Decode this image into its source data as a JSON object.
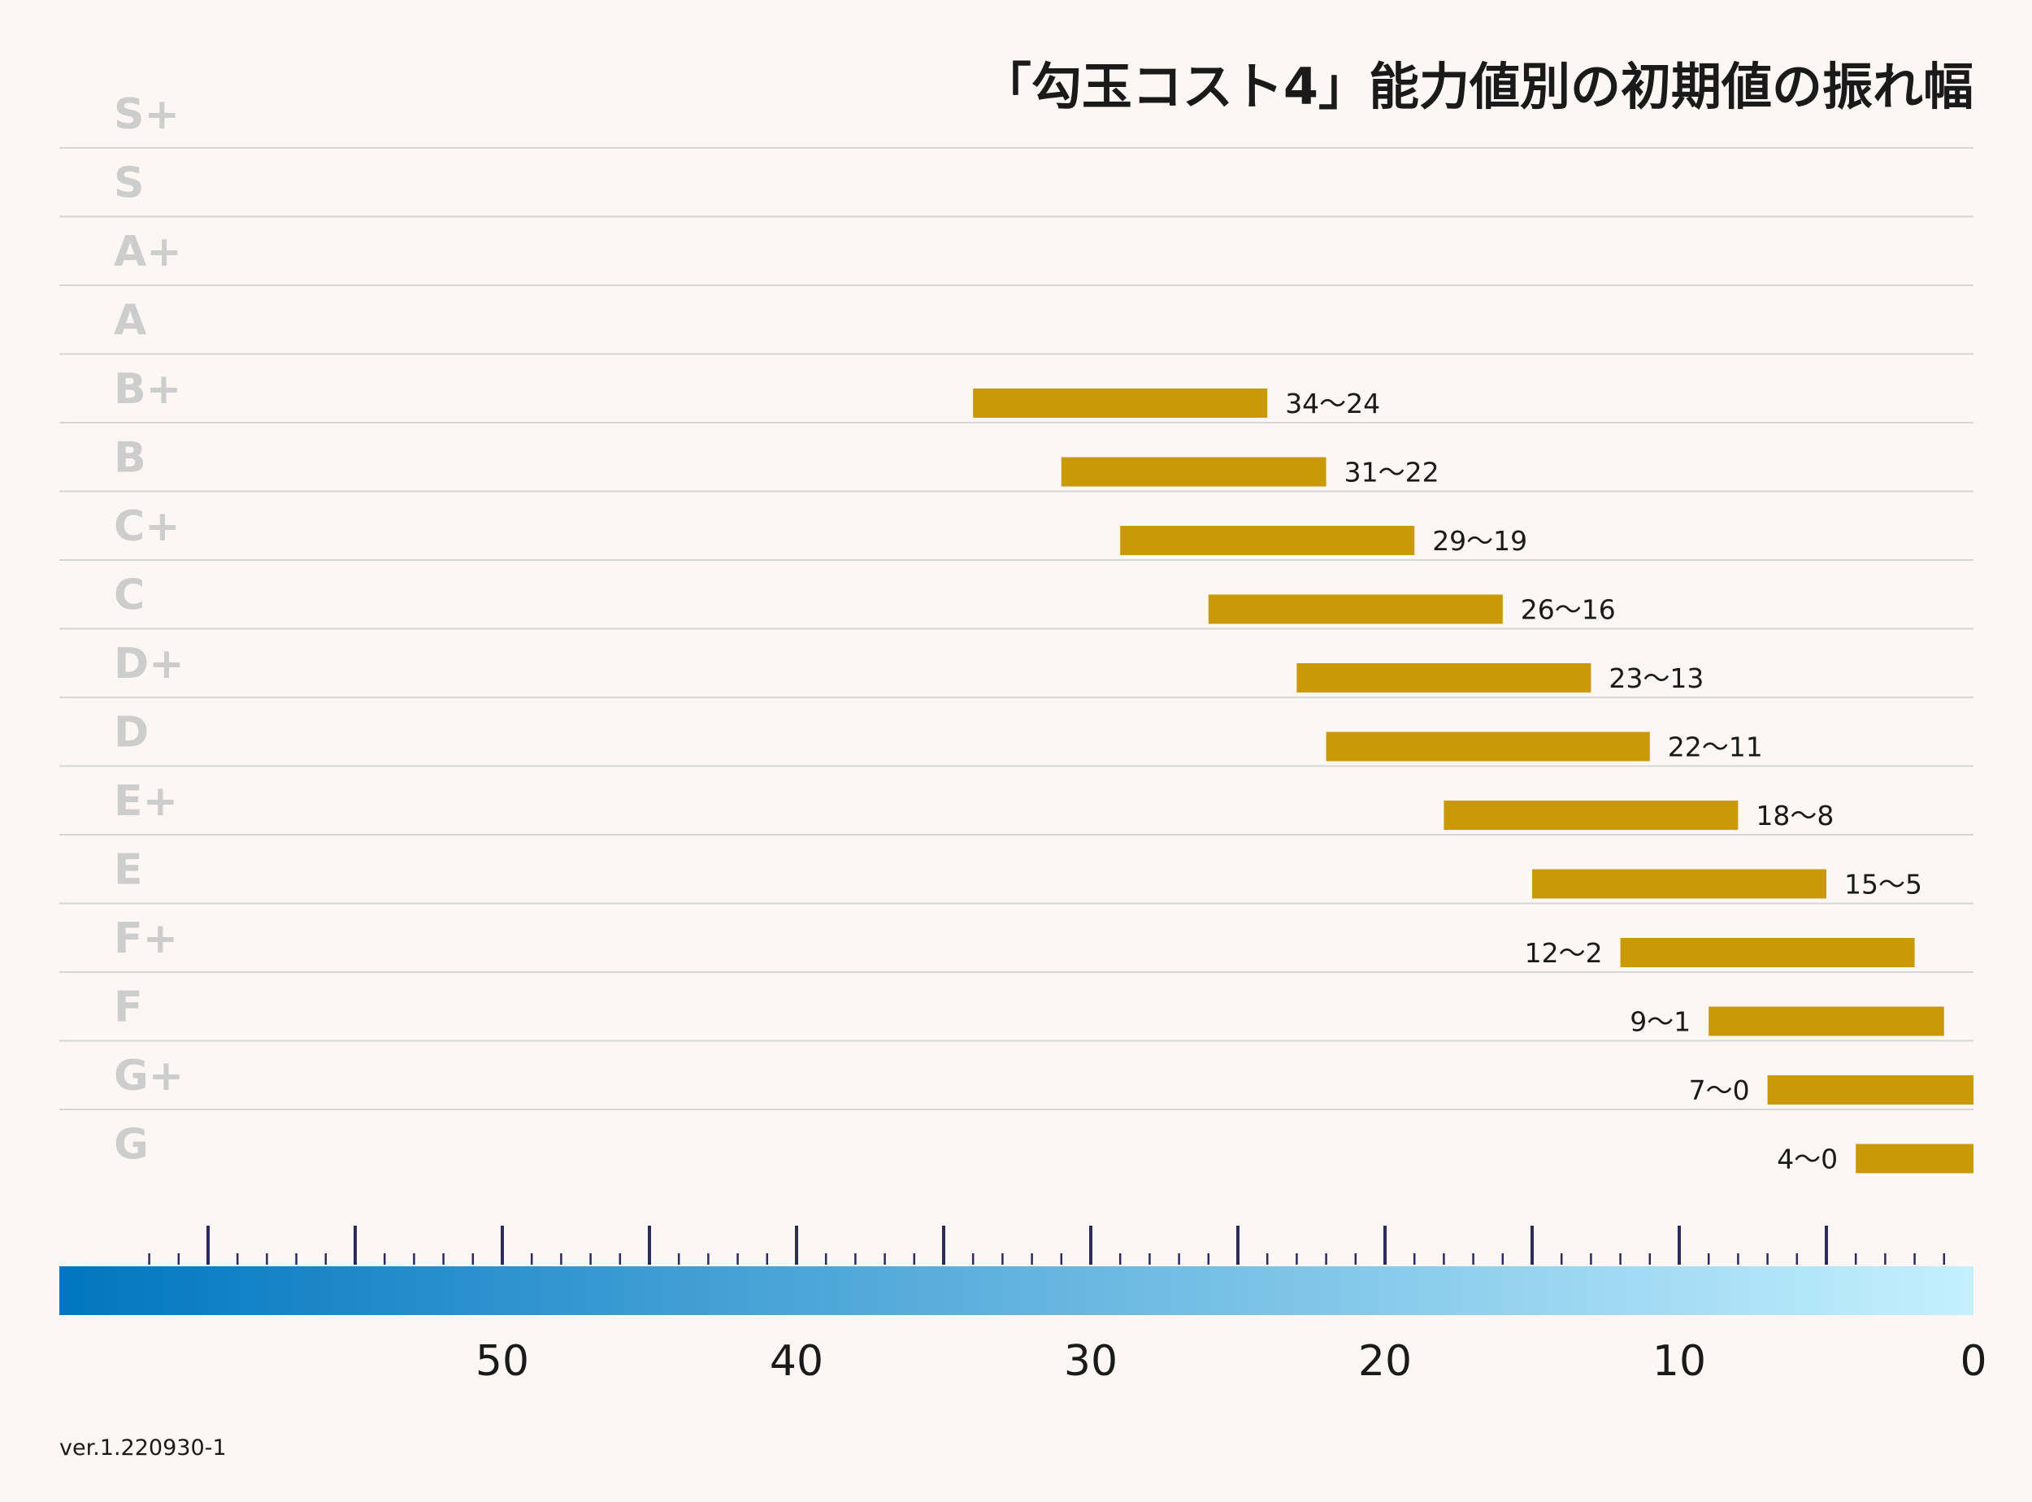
{
  "chart_data": {
    "type": "bar",
    "title": "「勾玉コスト4」能力値別の初期値の振れ幅",
    "version": "ver.1.220930-1",
    "categories": [
      "S+",
      "S",
      "A+",
      "A",
      "B+",
      "B",
      "C+",
      "C",
      "D+",
      "D",
      "E+",
      "E",
      "F+",
      "F",
      "G+",
      "G"
    ],
    "ranges": [
      null,
      null,
      null,
      null,
      {
        "high": 34,
        "low": 24,
        "label": "34〜24"
      },
      {
        "high": 31,
        "low": 22,
        "label": "31〜22"
      },
      {
        "high": 29,
        "low": 19,
        "label": "29〜19"
      },
      {
        "high": 26,
        "low": 16,
        "label": "26〜16"
      },
      {
        "high": 23,
        "low": 13,
        "label": "23〜13"
      },
      {
        "high": 22,
        "low": 11,
        "label": "22〜11"
      },
      {
        "high": 18,
        "low": 8,
        "label": "18〜8"
      },
      {
        "high": 15,
        "low": 5,
        "label": "15〜5"
      },
      {
        "high": 12,
        "low": 2,
        "label": "12〜2"
      },
      {
        "high": 9,
        "low": 1,
        "label": "9〜1"
      },
      {
        "high": 7,
        "low": 0,
        "label": "7〜0"
      },
      {
        "high": 4,
        "low": 0,
        "label": "4〜0"
      }
    ],
    "x_axis": {
      "min": 0,
      "max": 65,
      "reversed": true,
      "tick_labels": [
        "50",
        "40",
        "30",
        "20",
        "10",
        "0"
      ],
      "major_step": 5,
      "minor_step": 1
    },
    "colors": {
      "bar": "#c99a06",
      "grade_label": "#cdcdcd",
      "grid": "#d6d6d6",
      "tick": "#2b2b5c",
      "gradient_left": "#0076c0",
      "gradient_right": "#c4f0fe",
      "background": "#fcf6f5"
    },
    "grid": true
  }
}
